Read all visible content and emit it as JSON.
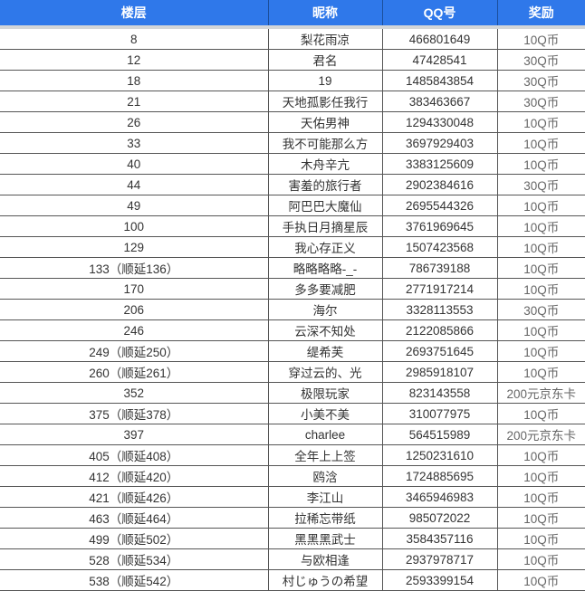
{
  "headers": [
    "楼层",
    "昵称",
    "QQ号",
    "奖励"
  ],
  "colors": {
    "header_bg": "#2f78ea",
    "header_text": "#ffffff"
  },
  "rows": [
    [
      "8",
      "梨花雨凉",
      "466801649",
      "10Q币"
    ],
    [
      "12",
      "君名",
      "47428541",
      "30Q币"
    ],
    [
      "18",
      "19",
      "1485843854",
      "30Q币"
    ],
    [
      "21",
      "天地孤影任我行",
      "383463667",
      "30Q币"
    ],
    [
      "26",
      "天佑男神",
      "1294330048",
      "10Q币"
    ],
    [
      "33",
      "我不可能那么方",
      "3697929403",
      "10Q币"
    ],
    [
      "40",
      "木舟辛亢",
      "3383125609",
      "10Q币"
    ],
    [
      "44",
      "害羞的旅行者",
      "2902384616",
      "30Q币"
    ],
    [
      "49",
      "阿巴巴大魔仙",
      "2695544326",
      "10Q币"
    ],
    [
      "100",
      "手执日月摘星辰",
      "3761969645",
      "10Q币"
    ],
    [
      "129",
      "我心存正义",
      "1507423568",
      "10Q币"
    ],
    [
      "133（顺延136）",
      "略略略略-_-",
      "786739188",
      "10Q币"
    ],
    [
      "170",
      "多多要减肥",
      "2771917214",
      "10Q币"
    ],
    [
      "206",
      "海尔",
      "3328113553",
      "30Q币"
    ],
    [
      "246",
      "云深不知处",
      "2122085866",
      "10Q币"
    ],
    [
      "249（顺延250）",
      "缇希芙",
      "2693751645",
      "10Q币"
    ],
    [
      "260（顺延261）",
      "穿过云的、光",
      "2985918107",
      "10Q币"
    ],
    [
      "352",
      "极限玩家",
      "823143558",
      "200元京东卡"
    ],
    [
      "375（顺延378）",
      "小美不美",
      "310077975",
      "10Q币"
    ],
    [
      "397",
      "charlee",
      "564515989",
      "200元京东卡"
    ],
    [
      "405（顺延408）",
      "全年上上签",
      "1250231610",
      "10Q币"
    ],
    [
      "412（顺延420）",
      "鸥浛",
      "1724885695",
      "10Q币"
    ],
    [
      "421（顺延426）",
      "李江山",
      "3465946983",
      "10Q币"
    ],
    [
      "463（顺延464）",
      "拉稀忘带纸",
      "985072022",
      "10Q币"
    ],
    [
      "499（顺延502）",
      "黑黑黑武士",
      "3584357116",
      "10Q币"
    ],
    [
      "528（顺延534）",
      "与欧相逢",
      "2937978717",
      "10Q币"
    ],
    [
      "538（顺延542）",
      "村じゅうの希望",
      "2593399154",
      "10Q币"
    ]
  ]
}
